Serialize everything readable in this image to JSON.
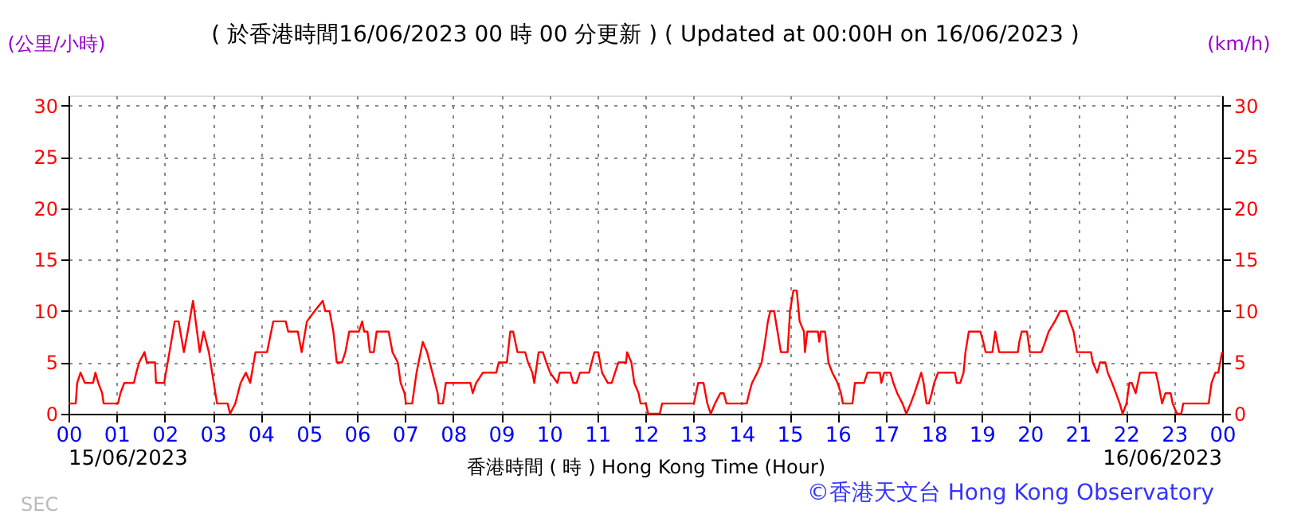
{
  "chart_data": {
    "type": "line",
    "title": "( 於香港時間16/06/2023 00 時 00 分更新 ) ( Updated at 00:00H on 16/06/2023 )",
    "xlabel": "香港時間 ( 時 ) Hong Kong Time (Hour)",
    "ylabel": "(公里/小時)",
    "y2label": "(km/h)",
    "annotations": [
      "15/06/2023",
      "16/06/2023",
      "©香港天文台 Hong Kong Observatory",
      "SEC"
    ],
    "series": [
      {
        "color": "#ff0000",
        "x": [
          0.0,
          0.15,
          0.18,
          0.25,
          0.34,
          0.51,
          0.56,
          0.62,
          0.7,
          0.73,
          1.03,
          1.08,
          1.16,
          1.36,
          1.41,
          1.47,
          1.58,
          1.63,
          1.8,
          1.82,
          1.99,
          2.1,
          2.21,
          2.29,
          2.4,
          2.48,
          2.59,
          2.73,
          2.81,
          2.92,
          3.09,
          3.31,
          3.36,
          3.47,
          3.58,
          3.69,
          3.78,
          3.89,
          4.13,
          4.26,
          4.52,
          4.57,
          4.77,
          4.85,
          4.96,
          5.12,
          5.29,
          5.34,
          5.43,
          5.51,
          5.58,
          5.69,
          5.76,
          5.84,
          6.04,
          6.11,
          6.15,
          6.22,
          6.27,
          6.35,
          6.41,
          6.66,
          6.74,
          6.85,
          6.91,
          6.99,
          7.02,
          7.15,
          7.24,
          7.37,
          7.46,
          7.57,
          7.68,
          7.7,
          7.79,
          7.85,
          8.36,
          8.41,
          8.48,
          8.62,
          8.9,
          8.95,
          9.12,
          9.19,
          9.25,
          9.34,
          9.5,
          9.56,
          9.65,
          9.69,
          9.78,
          9.87,
          9.94,
          10.02,
          10.17,
          10.22,
          10.44,
          10.5,
          10.57,
          10.64,
          10.83,
          10.94,
          11.02,
          11.1,
          11.22,
          11.3,
          11.44,
          11.6,
          11.62,
          11.71,
          11.77,
          11.86,
          11.9,
          12.01,
          12.06,
          12.08,
          12.3,
          12.35,
          13.01,
          13.1,
          13.21,
          13.29,
          13.36,
          13.45,
          13.56,
          13.63,
          13.69,
          14.11,
          14.16,
          14.22,
          14.33,
          14.42,
          14.49,
          14.55,
          14.6,
          14.68,
          14.75,
          14.82,
          14.96,
          15.01,
          15.08,
          15.15,
          15.21,
          15.3,
          15.32,
          15.37,
          15.59,
          15.62,
          15.65,
          15.74,
          15.81,
          15.89,
          16.0,
          16.07,
          16.11,
          16.31,
          16.36,
          16.55,
          16.62,
          16.88,
          16.91,
          16.97,
          17.1,
          17.16,
          17.24,
          17.35,
          17.43,
          17.52,
          17.6,
          17.74,
          17.79,
          17.85,
          17.9,
          17.96,
          18.01,
          18.09,
          18.44,
          18.48,
          18.55,
          18.62,
          18.66,
          18.73,
          18.97,
          19.03,
          19.08,
          19.22,
          19.28,
          19.36,
          19.75,
          19.78,
          19.83,
          19.94,
          20.0,
          20.24,
          20.32,
          20.39,
          20.52,
          20.63,
          20.76,
          20.83,
          20.91,
          20.98,
          21.27,
          21.31,
          21.4,
          21.46,
          21.57,
          21.62,
          21.71,
          21.79,
          21.87,
          21.93,
          22.01,
          22.07,
          22.12,
          22.2,
          22.29,
          22.62,
          22.67,
          22.75,
          22.82,
          22.93,
          22.97,
          23.06,
          23.15,
          23.19,
          23.72,
          23.78,
          23.86,
          23.92,
          24.0
        ],
        "values": [
          1,
          1,
          3,
          4,
          3,
          3,
          4,
          3,
          2,
          1,
          1,
          2,
          3,
          3,
          4,
          5,
          6,
          5,
          5,
          3,
          3,
          6,
          9,
          9,
          6,
          8,
          11,
          6,
          8,
          6,
          1,
          1,
          0,
          1,
          3,
          4,
          3,
          6,
          6,
          9,
          9,
          8,
          8,
          6,
          9,
          10,
          11,
          10,
          10,
          8,
          5,
          5,
          6,
          8,
          8,
          9,
          8,
          8,
          6,
          6,
          8,
          8,
          6,
          5,
          3,
          2,
          1,
          1,
          4,
          7,
          6,
          4,
          2,
          1,
          1,
          3,
          3,
          2,
          3,
          4,
          4,
          5,
          5,
          8,
          8,
          6,
          6,
          5,
          4,
          3,
          6,
          6,
          5,
          4,
          3,
          4,
          4,
          3,
          3,
          4,
          4,
          6,
          6,
          4,
          3,
          3,
          5,
          5,
          6,
          5,
          3,
          2,
          1,
          1,
          0,
          0,
          0,
          1,
          1,
          3,
          3,
          1,
          0,
          1,
          2,
          2,
          1,
          1,
          2,
          3,
          4,
          5,
          7,
          9,
          10,
          10,
          8,
          6,
          6,
          10,
          12,
          12,
          9,
          8,
          6,
          8,
          8,
          7,
          8,
          8,
          5,
          4,
          3,
          2,
          1,
          1,
          3,
          3,
          4,
          4,
          3,
          4,
          4,
          3,
          2,
          1,
          0,
          1,
          2,
          4,
          3,
          1,
          1,
          2,
          3,
          4,
          4,
          3,
          3,
          4,
          6,
          8,
          8,
          7,
          6,
          6,
          8,
          6,
          6,
          7,
          8,
          8,
          6,
          6,
          7,
          8,
          9,
          10,
          10,
          9,
          8,
          6,
          6,
          5,
          4,
          5,
          5,
          4,
          3,
          2,
          1,
          0,
          1,
          3,
          3,
          2,
          4,
          4,
          3,
          1,
          2,
          2,
          1,
          0,
          0,
          1,
          1,
          3,
          4,
          4,
          6
        ]
      }
    ],
    "xlim": [
      0,
      24
    ],
    "xticks": [
      {
        "value": 0,
        "label": "00"
      },
      {
        "value": 1,
        "label": "01"
      },
      {
        "value": 2,
        "label": "02"
      },
      {
        "value": 3,
        "label": "03"
      },
      {
        "value": 4,
        "label": "04"
      },
      {
        "value": 5,
        "label": "05"
      },
      {
        "value": 6,
        "label": "06"
      },
      {
        "value": 7,
        "label": "07"
      },
      {
        "value": 8,
        "label": "08"
      },
      {
        "value": 9,
        "label": "09"
      },
      10,
      11,
      12,
      13,
      14,
      15,
      16,
      17,
      18,
      19,
      20,
      21,
      22,
      23,
      {
        "value": 24,
        "label": "00"
      }
    ],
    "ylim": [
      0,
      31
    ],
    "yticks": [
      0,
      5,
      10,
      15,
      20,
      25,
      30
    ],
    "y2lim": [
      0,
      31
    ],
    "y2ticks": [
      0,
      5,
      10,
      15,
      20,
      25,
      30
    ],
    "grid": true
  }
}
